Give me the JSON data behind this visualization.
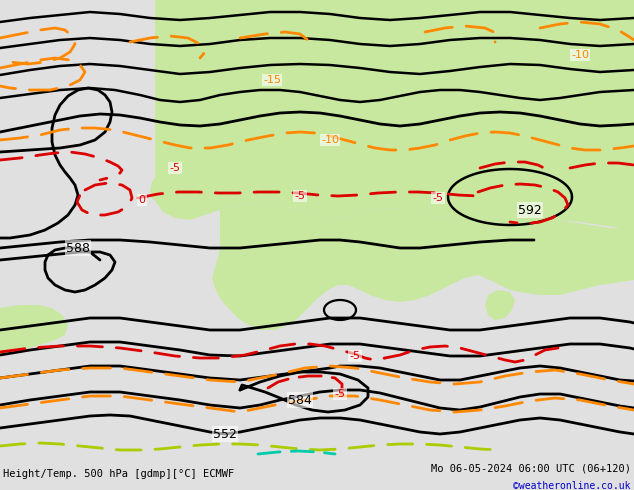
{
  "title_left": "Height/Temp. 500 hPa [gdmp][°C] ECMWF",
  "title_right": "Mo 06-05-2024 06:00 UTC (06+120)",
  "credit": "©weatheronline.co.uk",
  "bg_color": "#e0e0e0",
  "green_color": "#c8e8a0",
  "black_color": "#000000",
  "red_color": "#dd0000",
  "orange_color": "#ff8800",
  "ygreen_color": "#aacc00",
  "cyan_color": "#00ccaa",
  "figsize": [
    6.34,
    4.9
  ],
  "dpi": 100
}
